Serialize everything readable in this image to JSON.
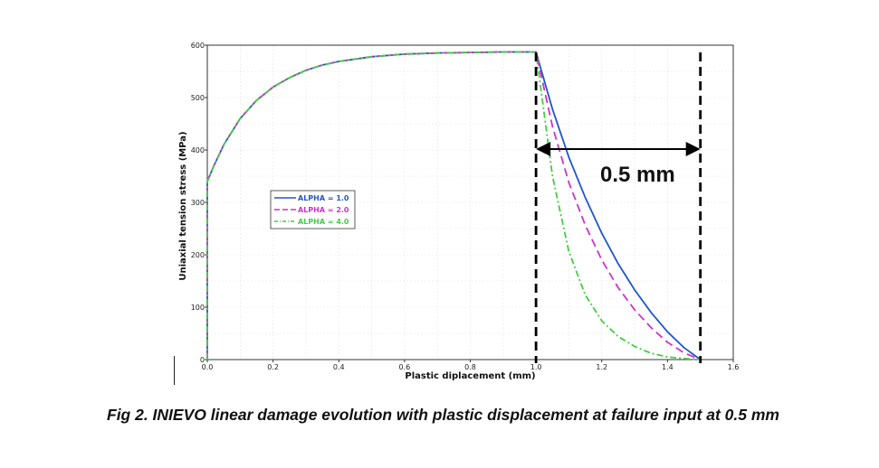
{
  "caption": "Fig 2. INIEVO linear damage evolution with plastic displacement at failure input at 0.5 mm",
  "chart_data": {
    "type": "line",
    "title": "",
    "xlabel": "Plastic diplacement (mm)",
    "ylabel": "Uniaxial tension stress (MPa)",
    "xlim": [
      0,
      1.6
    ],
    "ylim": [
      0,
      600
    ],
    "xticks": [
      0,
      0.2,
      0.4,
      0.6,
      0.8,
      1.0,
      1.2,
      1.4,
      1.6
    ],
    "xtick_labels": [
      "0.0",
      "0.2",
      "0.4",
      "0.6",
      "0.8",
      "1.0",
      "1.2",
      "1.4",
      "1.6"
    ],
    "yticks": [
      0,
      100,
      200,
      300,
      400,
      500,
      600
    ],
    "ytick_labels": [
      "0",
      "100",
      "200",
      "300",
      "400",
      "500",
      "600"
    ],
    "grid": true,
    "legend_position": "left-middle",
    "hardening_curve": {
      "x": [
        0,
        0,
        0.02,
        0.05,
        0.1,
        0.15,
        0.2,
        0.25,
        0.3,
        0.35,
        0.4,
        0.5,
        0.6,
        0.7,
        0.8,
        0.9,
        1.0
      ],
      "y": [
        0,
        340,
        370,
        410,
        460,
        495,
        520,
        538,
        552,
        562,
        569,
        578,
        583,
        585,
        586,
        587,
        587
      ]
    },
    "series": [
      {
        "name": "ALPHA = 1.0",
        "color": "#2255cc",
        "dash": "solid",
        "softening": {
          "x": [
            1.0,
            1.05,
            1.1,
            1.15,
            1.2,
            1.25,
            1.3,
            1.35,
            1.4,
            1.45,
            1.5
          ],
          "y": [
            587,
            478,
            386,
            309,
            241,
            183,
            133,
            90,
            53,
            23,
            0
          ]
        }
      },
      {
        "name": "ALPHA = 2.0",
        "color": "#cc33cc",
        "dash": "dash",
        "softening": {
          "x": [
            1.0,
            1.05,
            1.1,
            1.15,
            1.2,
            1.25,
            1.3,
            1.35,
            1.4,
            1.45,
            1.5
          ],
          "y": [
            587,
            445,
            338,
            256,
            190,
            137,
            95,
            61,
            33,
            13,
            0
          ]
        }
      },
      {
        "name": "ALPHA = 4.0",
        "color": "#44cc44",
        "dash": "dashdot",
        "softening": {
          "x": [
            1.0,
            1.05,
            1.1,
            1.15,
            1.2,
            1.25,
            1.3,
            1.35,
            1.4,
            1.45,
            1.5
          ],
          "y": [
            587,
            350,
            206,
            123,
            74,
            44,
            25,
            12,
            5,
            2,
            0
          ]
        }
      }
    ],
    "reference_lines_x": [
      1.0,
      1.5
    ],
    "arrow": {
      "from_x": 1.0,
      "to_x": 1.5,
      "y": 400
    },
    "annotation": "0.5 mm"
  }
}
